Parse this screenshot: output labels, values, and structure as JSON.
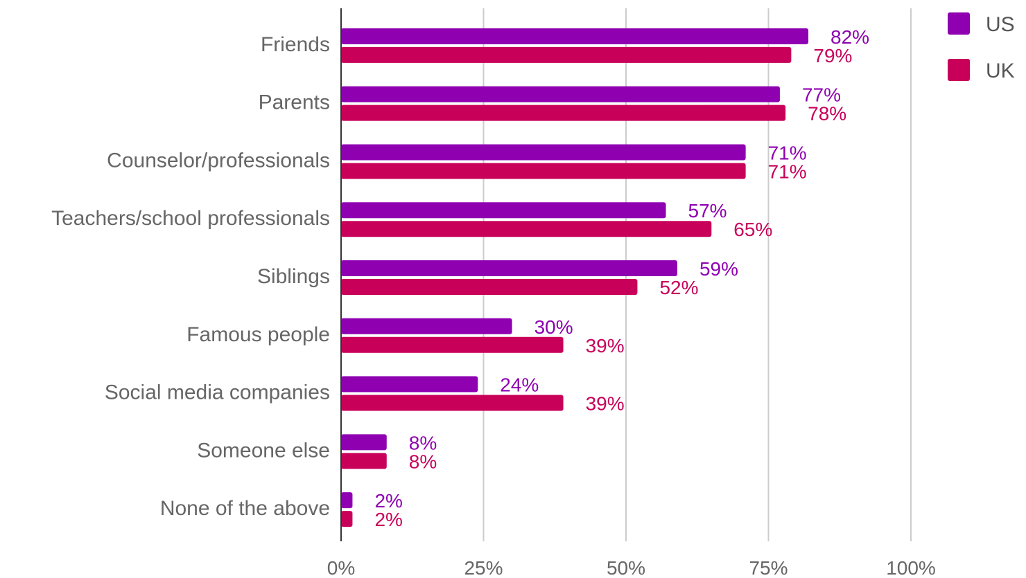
{
  "chart_data": {
    "type": "bar",
    "orientation": "horizontal",
    "categories": [
      "Friends",
      "Parents",
      "Counselor/professionals",
      "Teachers/school professionals",
      "Siblings",
      "Famous people",
      "Social media companies",
      "Someone else",
      "None of the above"
    ],
    "series": [
      {
        "name": "US",
        "color": "#8e00b0",
        "values": [
          82,
          77,
          71,
          57,
          59,
          30,
          24,
          8,
          2
        ]
      },
      {
        "name": "UK",
        "color": "#c8005a",
        "values": [
          79,
          78,
          71,
          65,
          52,
          39,
          39,
          8,
          2
        ]
      }
    ],
    "value_suffix": "%",
    "xlim": [
      0,
      100
    ],
    "xticks": [
      0,
      25,
      50,
      75,
      100
    ],
    "xtick_labels": [
      "0%",
      "25%",
      "50%",
      "75%",
      "100%"
    ],
    "grid": "vertical",
    "legend_position": "top-right",
    "title": "",
    "xlabel": "",
    "ylabel": ""
  }
}
